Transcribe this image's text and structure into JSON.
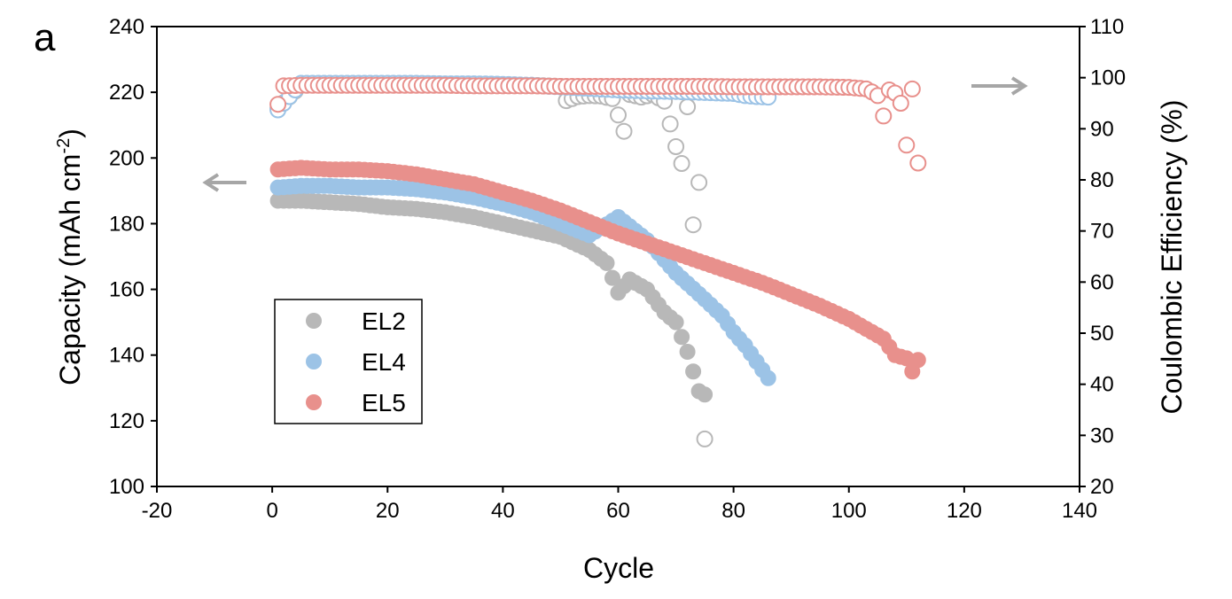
{
  "panel_label": "a",
  "chart_data": {
    "type": "scatter",
    "xlabel": "Cycle",
    "ylabel_left": "Capacity (mAh cm",
    "ylabel_left_sup": "-2",
    "ylabel_left_end": ")",
    "ylabel_right": "Coulombic Efficiency (%)",
    "xlim": [
      -20,
      140
    ],
    "ylim_left": [
      100,
      240
    ],
    "ylim_right": [
      20,
      110
    ],
    "x_ticks": [
      -20,
      0,
      20,
      40,
      60,
      80,
      100,
      120,
      140
    ],
    "y_left_ticks": [
      100,
      120,
      140,
      160,
      180,
      200,
      220,
      240
    ],
    "y_right_ticks": [
      20,
      30,
      40,
      50,
      60,
      70,
      80,
      90,
      100,
      110
    ],
    "legend_position": "lower-left",
    "grid": false,
    "annotations": [
      {
        "arrow": "left",
        "meaning": "capacity on left axis"
      },
      {
        "arrow": "right",
        "meaning": "coulombic efficiency on right axis"
      }
    ],
    "series": [
      {
        "name": "EL2",
        "color": "#b8b8b8",
        "capacity": {
          "x": [
            1,
            5,
            10,
            15,
            20,
            25,
            30,
            35,
            40,
            45,
            50,
            55,
            58,
            60,
            62,
            65,
            68,
            70,
            72,
            73,
            74,
            75
          ],
          "y": [
            187,
            187,
            186.5,
            186,
            185,
            184.5,
            183.5,
            182,
            180,
            178,
            176,
            172,
            168,
            159,
            163,
            160,
            153,
            150,
            141,
            135,
            129,
            128
          ]
        },
        "efficiency": {
          "x": [
            1,
            5,
            10,
            15,
            20,
            25,
            30,
            35,
            40,
            45,
            50,
            51,
            53,
            55,
            57,
            59,
            61,
            62,
            64,
            66,
            68,
            70,
            71,
            72,
            73,
            74,
            75
          ],
          "y": [
            94,
            98.5,
            98.8,
            98.8,
            98.8,
            98.8,
            98.7,
            98.7,
            98.6,
            98.5,
            98.3,
            95.5,
            96.3,
            96.5,
            96.4,
            95.9,
            89.5,
            96.7,
            96.2,
            96.7,
            95.4,
            86.5,
            83.2,
            94.3,
            71.2,
            79.5,
            29.3
          ]
        }
      },
      {
        "name": "EL4",
        "color": "#9cc3e6",
        "capacity": {
          "x": [
            1,
            5,
            10,
            15,
            20,
            25,
            30,
            35,
            40,
            45,
            50,
            55,
            60,
            65,
            70,
            75,
            78,
            80,
            82,
            84,
            86
          ],
          "y": [
            191,
            191.5,
            191.5,
            191,
            191,
            190.5,
            189.5,
            188,
            186,
            183.5,
            180,
            176.5,
            182,
            175,
            165,
            157,
            152,
            147,
            143,
            138,
            133
          ]
        },
        "efficiency": {
          "x": [
            1,
            5,
            10,
            15,
            20,
            25,
            30,
            35,
            40,
            45,
            50,
            55,
            60,
            65,
            70,
            75,
            80,
            82,
            84,
            86
          ],
          "y": [
            93.7,
            98.9,
            98.9,
            98.9,
            98.9,
            98.9,
            98.8,
            98.8,
            98.7,
            98.5,
            98.2,
            97.9,
            97.6,
            97.4,
            97.3,
            97.1,
            96.9,
            96.5,
            96.3,
            96.2
          ]
        }
      },
      {
        "name": "EL5",
        "color": "#e8908c",
        "capacity": {
          "x": [
            1,
            5,
            10,
            15,
            20,
            25,
            30,
            35,
            40,
            45,
            50,
            55,
            60,
            65,
            70,
            75,
            80,
            85,
            90,
            95,
            100,
            105,
            106,
            108,
            110,
            111,
            112
          ],
          "y": [
            196.5,
            197,
            196.5,
            196.5,
            196,
            195,
            193.5,
            192,
            189.5,
            187,
            184,
            180.5,
            177,
            174,
            171,
            168,
            165,
            162,
            158.5,
            155,
            151,
            146,
            145,
            140,
            139,
            135,
            138.5
          ]
        },
        "efficiency": {
          "x": [
            1,
            2,
            5,
            10,
            15,
            20,
            25,
            30,
            35,
            40,
            45,
            50,
            55,
            60,
            65,
            70,
            75,
            80,
            85,
            90,
            95,
            100,
            103,
            104,
            105,
            106,
            107,
            108,
            109,
            110,
            111,
            112
          ],
          "y": [
            94.8,
            98.4,
            98.5,
            98.5,
            98.5,
            98.5,
            98.5,
            98.5,
            98.4,
            98.4,
            98.4,
            98.3,
            98.3,
            98.3,
            98.3,
            98.3,
            98.3,
            98.2,
            98.2,
            98.2,
            98.2,
            98.1,
            97.8,
            97.2,
            96.5,
            92.5,
            97.6,
            97.0,
            95.0,
            86.8,
            97.8,
            83.3
          ]
        }
      }
    ]
  }
}
